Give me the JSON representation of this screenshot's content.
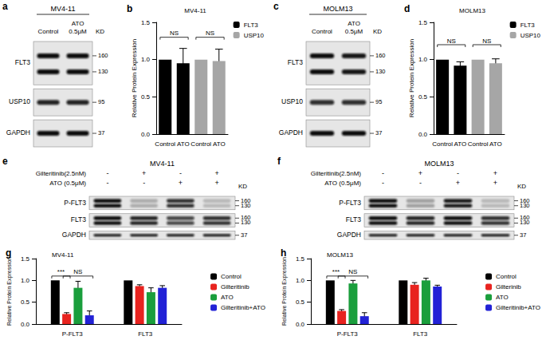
{
  "blots": [
    {
      "panel": "a",
      "title": "MV4-11",
      "columns": [
        "Control",
        "ATO 0.5μM"
      ],
      "unit": "KD",
      "rows": [
        {
          "label": "FLT3",
          "markers": [
            160,
            130
          ],
          "intensity": [
            1,
            1
          ]
        },
        {
          "label": "USP10",
          "markers": [
            95
          ],
          "intensity": [
            0.9,
            0.9
          ]
        },
        {
          "label": "GAPDH",
          "markers": [
            37
          ],
          "intensity": [
            1,
            1
          ]
        }
      ]
    },
    {
      "panel": "c",
      "title": "MOLM13",
      "columns": [
        "Control",
        "ATO 0.5μM"
      ],
      "unit": "KD",
      "rows": [
        {
          "label": "FLT3",
          "markers": [
            160,
            130
          ],
          "intensity": [
            1,
            0.95
          ]
        },
        {
          "label": "USP10",
          "markers": [
            95
          ],
          "intensity": [
            0.85,
            0.85
          ]
        },
        {
          "label": "GAPDH",
          "markers": [
            37
          ],
          "intensity": [
            1,
            1
          ]
        }
      ]
    },
    {
      "panel": "e",
      "title": "MV4-11",
      "unit": "KD",
      "treatments": [
        {
          "label": "Gilteritinib(2.5nM)",
          "signs": [
            "-",
            "+",
            "-",
            "+"
          ]
        },
        {
          "label": "ATO (0.5μM)",
          "signs": [
            "-",
            "-",
            "+",
            "+"
          ]
        }
      ],
      "rows": [
        {
          "label": "P-FLT3",
          "markers": [
            160,
            130
          ],
          "intensity": [
            1,
            0.25,
            0.85,
            0.2
          ]
        },
        {
          "label": "FLT3",
          "markers": [
            160,
            130
          ],
          "intensity": [
            1,
            0.9,
            0.75,
            0.85
          ]
        },
        {
          "label": "GAPDH",
          "markers": [
            37
          ],
          "intensity": [
            1,
            1,
            1,
            1
          ]
        }
      ]
    },
    {
      "panel": "f",
      "title": "MOLM13",
      "unit": "KD",
      "treatments": [
        {
          "label": "Gilteritinib(2.5nM)",
          "signs": [
            "-",
            "+",
            "-",
            "+"
          ]
        },
        {
          "label": "ATO (0.5μM)",
          "signs": [
            "-",
            "-",
            "+",
            "+"
          ]
        }
      ],
      "rows": [
        {
          "label": "P-FLT3",
          "markers": [
            160,
            130
          ],
          "intensity": [
            1,
            0.3,
            0.95,
            0.2
          ]
        },
        {
          "label": "FLT3",
          "markers": [
            160,
            130
          ],
          "intensity": [
            1,
            0.9,
            1,
            0.85
          ]
        },
        {
          "label": "GAPDH",
          "markers": [
            37
          ],
          "intensity": [
            1,
            1,
            1,
            1
          ]
        }
      ]
    }
  ],
  "chart_data": [
    {
      "panel": "b",
      "type": "bar",
      "title": "MV4-11",
      "y_label": "Relative Protein Expression",
      "categories": [
        "Control",
        "ATO",
        "Control",
        "ATO"
      ],
      "series": [
        {
          "name": "FLT3",
          "color": "#000000",
          "values": [
            1.0,
            0.95,
            null,
            null
          ],
          "errors": [
            0,
            0.2,
            null,
            null
          ]
        },
        {
          "name": "USP10",
          "color": "#a6a6a6",
          "values": [
            null,
            null,
            1.0,
            0.98
          ],
          "errors": [
            null,
            null,
            0,
            0.16
          ]
        }
      ],
      "ylim": [
        0,
        1.5
      ],
      "yticks": [
        {
          "value": 0,
          "label": "0.0"
        },
        {
          "value": 0.5,
          "label": "0.5"
        },
        {
          "value": 1,
          "label": "1.0"
        },
        {
          "value": 1.5,
          "label": "1.5"
        }
      ],
      "grid": false,
      "legend": "top-right",
      "annotations": [
        {
          "text": "NS",
          "series": "FLT3",
          "y": 1.3
        },
        {
          "text": "NS",
          "series": "USP10",
          "y": 1.3
        }
      ]
    },
    {
      "panel": "d",
      "type": "bar",
      "title": "MOLM13",
      "y_label": "Relative Protein Expression",
      "categories": [
        "Control",
        "ATO",
        "Control",
        "ATO"
      ],
      "series": [
        {
          "name": "FLT3",
          "color": "#000000",
          "values": [
            1.0,
            0.92,
            null,
            null
          ],
          "errors": [
            0,
            0.05,
            null,
            null
          ]
        },
        {
          "name": "USP10",
          "color": "#a6a6a6",
          "values": [
            null,
            null,
            1.0,
            0.95
          ],
          "errors": [
            null,
            null,
            0,
            0.06
          ]
        }
      ],
      "ylim": [
        0,
        1.5
      ],
      "yticks": [
        {
          "value": 0,
          "label": "0.0"
        },
        {
          "value": 0.5,
          "label": "0.5"
        },
        {
          "value": 1,
          "label": "1.0"
        },
        {
          "value": 1.5,
          "label": "1.5"
        }
      ],
      "grid": false,
      "legend": "top-right",
      "annotations": [
        {
          "text": "NS",
          "series": "FLT3",
          "y": 1.2
        },
        {
          "text": "NS",
          "series": "USP10",
          "y": 1.2
        }
      ]
    },
    {
      "panel": "g",
      "type": "bar",
      "title": "MV4-11",
      "y_label": "Relative Protein Expression",
      "categories": [
        "P-FLT3",
        "FLT3"
      ],
      "series": [
        {
          "name": "Control",
          "color": "#000000",
          "values": [
            1.0,
            1.0
          ],
          "errors": [
            0,
            0
          ]
        },
        {
          "name": "Gilteritinib",
          "color": "#e8231f",
          "values": [
            0.23,
            0.87
          ],
          "errors": [
            0.03,
            0.03
          ]
        },
        {
          "name": "ATO",
          "color": "#1a9e3c",
          "values": [
            0.83,
            0.73
          ],
          "errors": [
            0.15,
            0.1
          ]
        },
        {
          "name": "Gilteritinib+ATO",
          "color": "#2222d6",
          "values": [
            0.2,
            0.83
          ],
          "errors": [
            0.1,
            0.05
          ]
        }
      ],
      "ylim": [
        0,
        1.5
      ],
      "yticks": [
        {
          "value": 0,
          "label": "0.0"
        },
        {
          "value": 0.5,
          "label": "0.5"
        },
        {
          "value": 1,
          "label": "1.0"
        },
        {
          "value": 1.5,
          "label": "1.5"
        }
      ],
      "grid": false,
      "legend": "right",
      "annotations": [
        {
          "text": "***",
          "category": "P-FLT3",
          "from": "Control",
          "to": "Gilteritinib",
          "y": 1.1
        },
        {
          "text": "NS",
          "category": "P-FLT3",
          "from": "Gilteritinib",
          "to": "Gilteritinib+ATO",
          "y": 1.1
        }
      ]
    },
    {
      "panel": "h",
      "type": "bar",
      "title": "MOLM13",
      "y_label": "Relative Protein Expression",
      "categories": [
        "P-FLT3",
        "FLT3"
      ],
      "series": [
        {
          "name": "Control",
          "color": "#000000",
          "values": [
            1.0,
            1.0
          ],
          "errors": [
            0,
            0
          ]
        },
        {
          "name": "Gilterinib",
          "color": "#e8231f",
          "values": [
            0.3,
            0.9
          ],
          "errors": [
            0.03,
            0.05
          ]
        },
        {
          "name": "ATO",
          "color": "#1a9e3c",
          "values": [
            0.93,
            1.0
          ],
          "errors": [
            0.07,
            0.05
          ]
        },
        {
          "name": "Gilteritinib+ATO",
          "color": "#2222d6",
          "values": [
            0.18,
            0.86
          ],
          "errors": [
            0.08,
            0.03
          ]
        }
      ],
      "ylim": [
        0,
        1.5
      ],
      "yticks": [
        {
          "value": 0,
          "label": "0.0"
        },
        {
          "value": 0.5,
          "label": "0.5"
        },
        {
          "value": 1,
          "label": "1.0"
        },
        {
          "value": 1.5,
          "label": "1.5"
        }
      ],
      "grid": false,
      "legend": "right",
      "annotations": [
        {
          "text": "***",
          "category": "P-FLT3",
          "from": "Control",
          "to": "Gilterinib",
          "y": 1.1
        },
        {
          "text": "NS",
          "category": "P-FLT3",
          "from": "Gilterinib",
          "to": "Gilteritinib+ATO",
          "y": 1.1
        }
      ]
    }
  ]
}
